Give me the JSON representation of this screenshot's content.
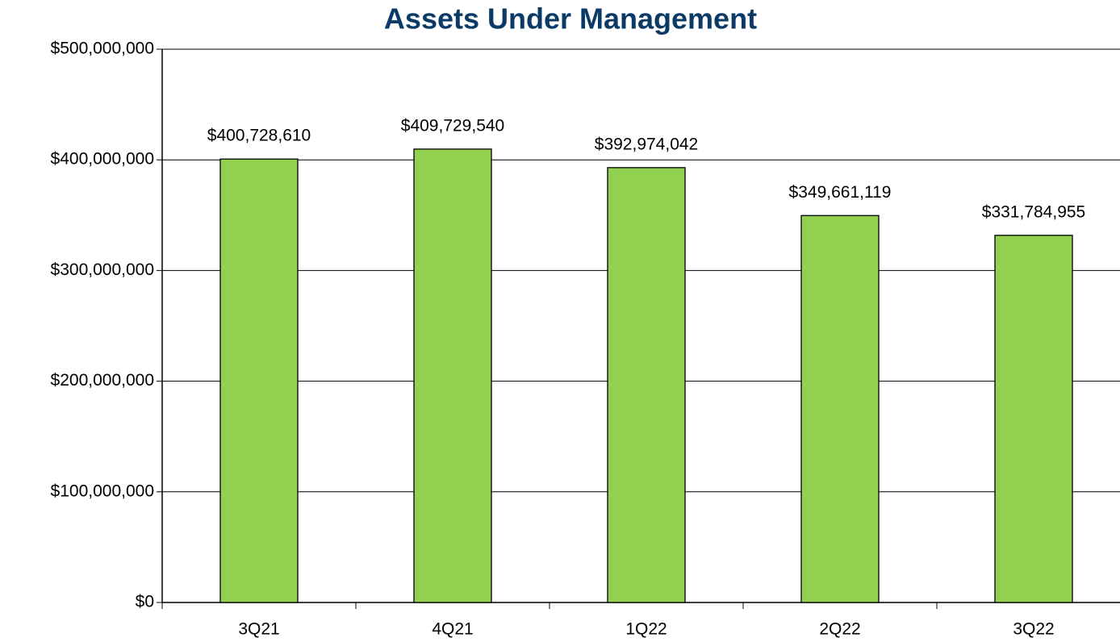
{
  "chart_data": {
    "type": "bar",
    "title": "Assets Under Management",
    "categories": [
      "3Q21",
      "4Q21",
      "1Q22",
      "2Q22",
      "3Q22"
    ],
    "values": [
      400728610,
      409729540,
      392974042,
      349661119,
      331784955
    ],
    "value_labels": [
      "$400,728,610",
      "$409,729,540",
      "$392,974,042",
      "$349,661,119",
      "$331,784,955"
    ],
    "color": "#92d050",
    "ylim": [
      0,
      500000000
    ],
    "yticks": [
      {
        "value": 0,
        "label": "$0"
      },
      {
        "value": 100000000,
        "label": "$100,000,000"
      },
      {
        "value": 200000000,
        "label": "$200,000,000"
      },
      {
        "value": 300000000,
        "label": "$300,000,000"
      },
      {
        "value": 400000000,
        "label": "$400,000,000"
      },
      {
        "value": 500000000,
        "label": "$500,000,000"
      }
    ],
    "grid": true
  }
}
